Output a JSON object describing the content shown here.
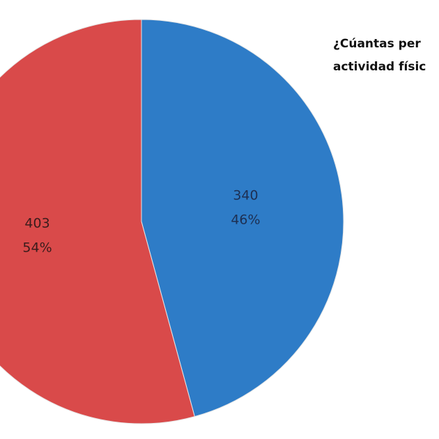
{
  "chart_data": {
    "type": "pie",
    "title_lines": [
      "¿Cúantas per",
      "actividad físic"
    ],
    "values": [
      340,
      403
    ],
    "percent_labels": [
      "46%",
      "54%"
    ],
    "colors": [
      "#2e7cc7",
      "#d94a4a"
    ],
    "label_colors": [
      "#1d2f52",
      "#3a1c1c"
    ]
  }
}
